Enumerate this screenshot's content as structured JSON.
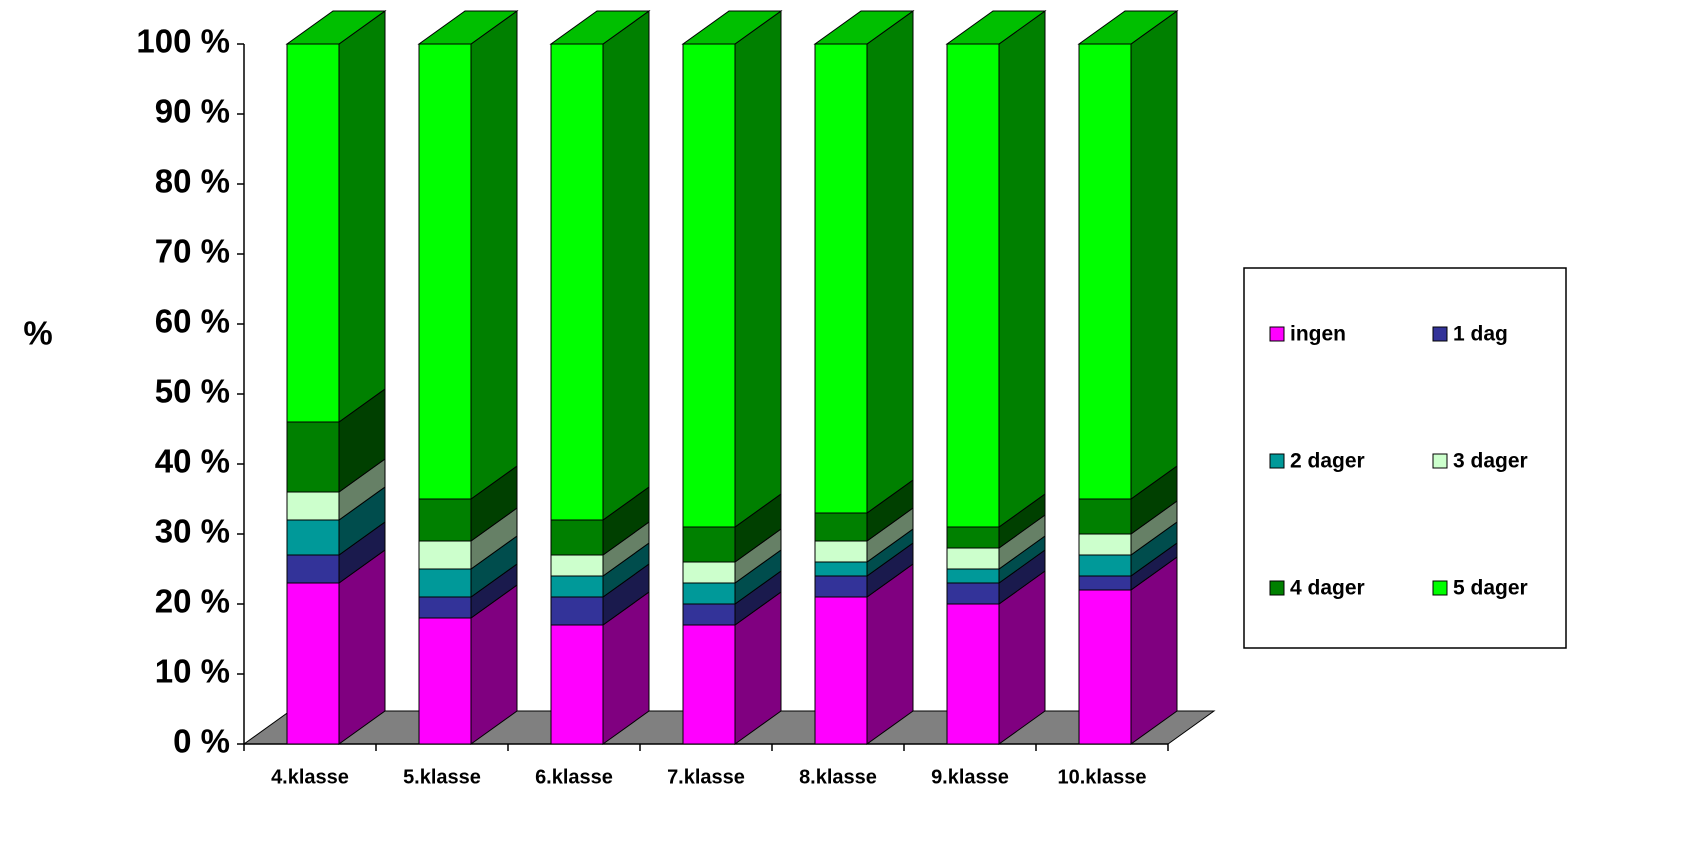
{
  "chart_data": {
    "type": "stacked-bar-3d",
    "y_label": "%",
    "categories": [
      "4.klasse",
      "5.klasse",
      "6.klasse",
      "7.klasse",
      "8.klasse",
      "9.klasse",
      "10.klasse"
    ],
    "series": [
      {
        "name": "ingen",
        "color": "#ff00ff",
        "values": [
          23,
          18,
          17,
          17,
          21,
          20,
          22
        ]
      },
      {
        "name": "1 dag",
        "color": "#333399",
        "values": [
          4,
          3,
          4,
          3,
          3,
          3,
          2
        ]
      },
      {
        "name": "2 dager",
        "color": "#009999",
        "values": [
          5,
          4,
          3,
          3,
          2,
          2,
          3
        ]
      },
      {
        "name": "3 dager",
        "color": "#ccffcc",
        "values": [
          4,
          4,
          3,
          3,
          3,
          3,
          3
        ]
      },
      {
        "name": "4 dager",
        "color": "#008000",
        "values": [
          10,
          6,
          5,
          5,
          4,
          3,
          5
        ]
      },
      {
        "name": "5 dager",
        "color": "#00ff00",
        "values": [
          54,
          65,
          68,
          69,
          67,
          69,
          65
        ]
      }
    ],
    "ylim": [
      0,
      100
    ],
    "yticks": [
      {
        "value": 0,
        "label": "0 %"
      },
      {
        "value": 10,
        "label": "10 %"
      },
      {
        "value": 20,
        "label": "20 %"
      },
      {
        "value": 30,
        "label": "30 %"
      },
      {
        "value": 40,
        "label": "40 %"
      },
      {
        "value": 50,
        "label": "50 %"
      },
      {
        "value": 60,
        "label": "60 %"
      },
      {
        "value": 70,
        "label": "70 %"
      },
      {
        "value": 80,
        "label": "80 %"
      },
      {
        "value": 90,
        "label": "90 %"
      },
      {
        "value": 100,
        "label": "100 %"
      }
    ]
  }
}
